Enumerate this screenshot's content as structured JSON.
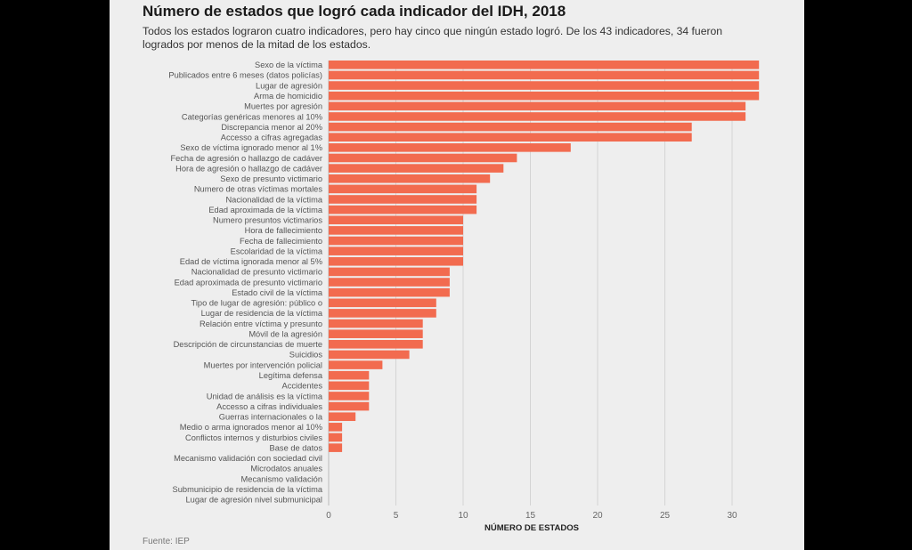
{
  "chart_data": {
    "type": "bar",
    "orientation": "horizontal",
    "title": "Número de estados que logró cada indicador del IDH, 2018",
    "subtitle": "Todos los estados lograron cuatro indicadores, pero hay cinco que ningún estado logró. De los 43 indicadores, 34 fueron logrados por menos de la mitad de los estados.",
    "xlabel": "NÚMERO DE ESTADOS",
    "ylabel": "",
    "source": "Fuente: IEP",
    "xlim": [
      0,
      32
    ],
    "xticks": [
      0,
      5,
      10,
      15,
      20,
      25,
      30
    ],
    "grid": true,
    "bar_color": "#f26b4f",
    "categories": [
      "Sexo de la víctima",
      "Publicados entre 6 meses (datos policías)",
      "Lugar de agresión",
      "Arma de homicidio",
      "Muertes por agresión",
      "Categorías genéricas menores al 10%",
      "Discrepancia menor al 20%",
      "Accesso a cifras agregadas",
      "Sexo de víctima ignorado menor al 1%",
      "Fecha de agresión o hallazgo de cadáver",
      "Hora de agresión o hallazgo de cadáver",
      "Sexo de presunto victimario",
      "Numero de otras víctimas mortales",
      "Nacionalidad de la víctima",
      "Edad aproximada de la víctima",
      "Numero presuntos victimarios",
      "Hora de fallecimiento",
      "Fecha de fallecimiento",
      "Escolaridad de la víctima",
      "Edad de víctima ignorada menor al 5%",
      "Nacionalidad de presunto victimario",
      "Edad aproximada de presunto victimario",
      "Estado civil de la víctima",
      "Tipo de lugar de agresión: público o",
      "Lugar de residencia de la víctima",
      "Relación entre víctima y presunto",
      "Móvil de la agresión",
      "Descripción de circunstancias de muerte",
      "Suicidios",
      "Muertes por intervención policial",
      "Legítima defensa",
      "Accidentes",
      "Unidad de análisis es la víctima",
      "Accesso a cifras individuales",
      "Guerras internacionales o la",
      "Medio o arma ignorados menor al 10%",
      "Conflictos internos y disturbios civiles",
      "Base de datos",
      "Mecanismo validación con sociedad civil",
      "Microdatos anuales",
      "Mecanismo validación",
      "Submunicipio de residencia de la víctima",
      "Lugar de agresión nivel submunicipal"
    ],
    "values": [
      32,
      32,
      32,
      32,
      31,
      31,
      27,
      27,
      18,
      14,
      13,
      12,
      11,
      11,
      11,
      10,
      10,
      10,
      10,
      10,
      9,
      9,
      9,
      8,
      8,
      7,
      7,
      7,
      6,
      4,
      3,
      3,
      3,
      3,
      2,
      1,
      1,
      1,
      0,
      0,
      0,
      0,
      0
    ]
  }
}
